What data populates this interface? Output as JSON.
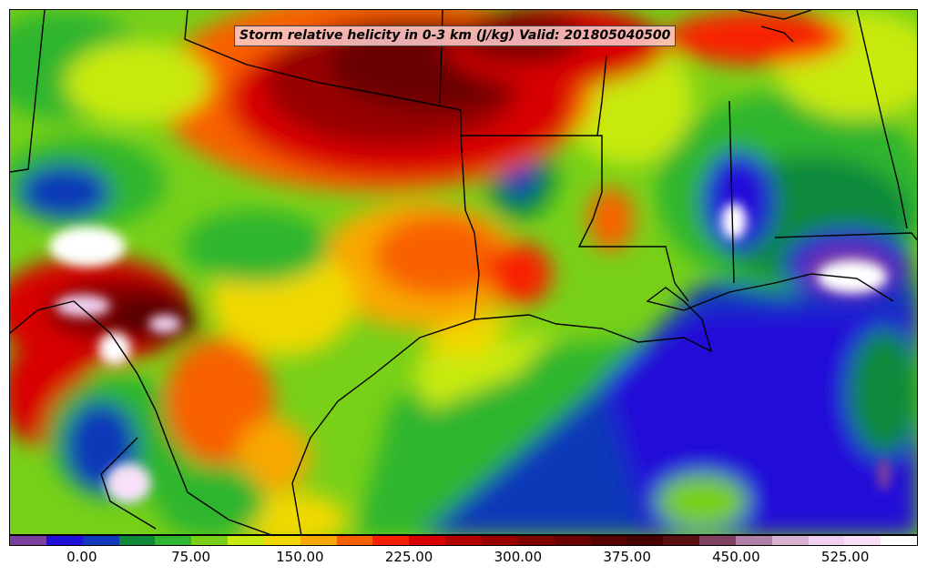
{
  "title": "Storm relative helicity in 0-3 km (J/kg) Valid: 201805040500",
  "colorbar": {
    "colors": [
      "#7b3fa0",
      "#2010d8",
      "#1038b8",
      "#108a3a",
      "#2fb52f",
      "#78d018",
      "#c8ea10",
      "#f0d800",
      "#f8a800",
      "#f86000",
      "#f82000",
      "#d80000",
      "#b00000",
      "#980000",
      "#800000",
      "#6a0000",
      "#560000",
      "#460000",
      "#5a1010",
      "#804060",
      "#b080a8",
      "#d8b0d0",
      "#f0d0f0",
      "#f8e0f8",
      "#ffffff"
    ],
    "tick_labels": [
      "0.00",
      "75.00",
      "150.00",
      "225.00",
      "300.00",
      "375.00",
      "450.00",
      "525.00"
    ]
  }
}
